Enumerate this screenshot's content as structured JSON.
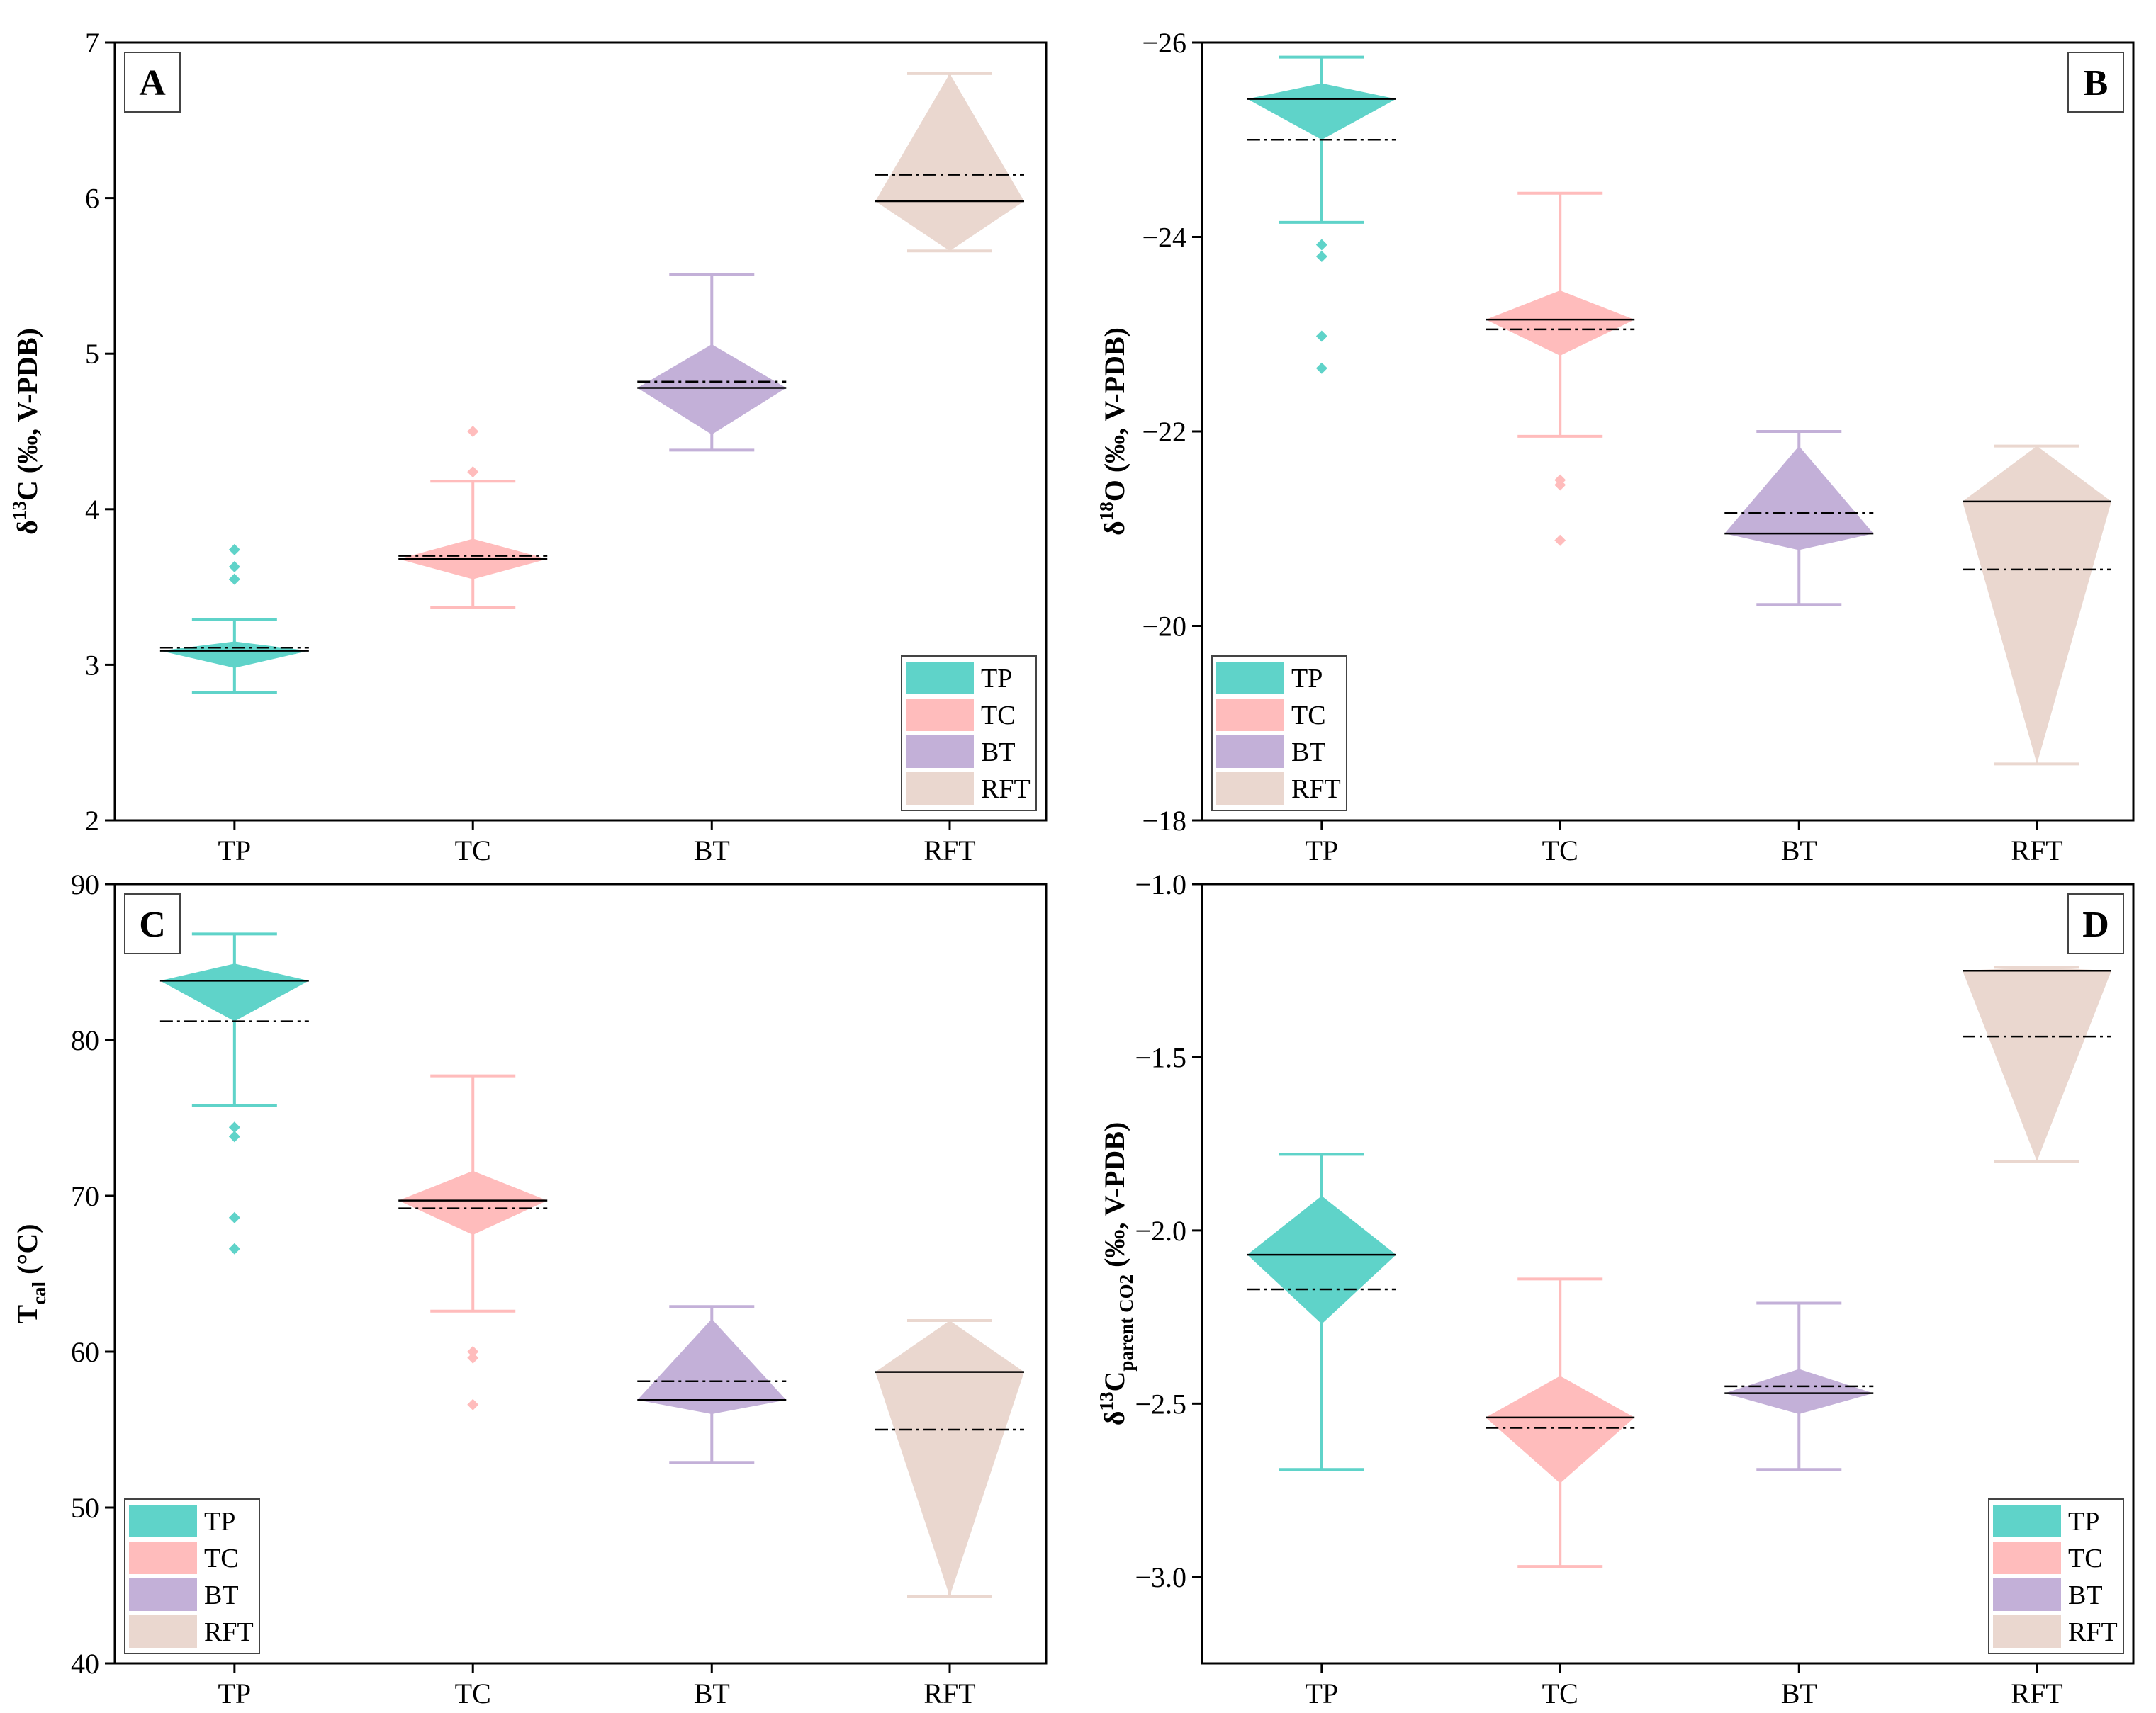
{
  "colors": {
    "TP": "#5fd3c9",
    "TC": "#ffbcbc",
    "BT": "#c3b0d8",
    "RFT": "#ead7cf"
  },
  "chart_data": [
    {
      "type": "box",
      "panel_label": "A",
      "ylabel": {
        "main": "δ",
        "sup": "13",
        "after": "C (‰, V-PDB)"
      },
      "ylim": [
        2,
        7
      ],
      "yticks": [
        2,
        3,
        4,
        5,
        6,
        7
      ],
      "categories": [
        "TP",
        "TC",
        "BT",
        "RFT"
      ],
      "legend": {
        "position": "bottom-right",
        "entries": [
          "TP",
          "TC",
          "BT",
          "RFT"
        ]
      },
      "series": [
        {
          "name": "TP",
          "whisker_low": 2.82,
          "whisker_high": 3.29,
          "q1": 2.98,
          "q3": 3.15,
          "median": 3.09,
          "mean": 3.11,
          "outliers": [
            3.55,
            3.63,
            3.74
          ]
        },
        {
          "name": "TC",
          "whisker_low": 3.37,
          "whisker_high": 4.18,
          "q1": 3.55,
          "q3": 3.81,
          "median": 3.68,
          "mean": 3.7,
          "outliers": [
            4.24,
            4.5
          ]
        },
        {
          "name": "BT",
          "whisker_low": 4.38,
          "whisker_high": 5.51,
          "q1": 4.48,
          "q3": 5.06,
          "median": 4.78,
          "mean": 4.82,
          "outliers": []
        },
        {
          "name": "RFT",
          "whisker_low": 5.66,
          "whisker_high": 6.8,
          "q1": 5.66,
          "q3": 6.8,
          "median": 5.98,
          "mean": 6.15,
          "outliers": []
        }
      ]
    },
    {
      "type": "box",
      "panel_label": "B",
      "ylabel": {
        "main": "δ",
        "sup": "18",
        "after": "O (‰, V-PDB)"
      },
      "ylim": [
        -26,
        -18
      ],
      "yticks": [
        -26,
        -24,
        -22,
        -20,
        -18
      ],
      "ytick_labels": [
        "−26",
        "−24",
        "−22",
        "−20",
        "−18"
      ],
      "reversed": true,
      "categories": [
        "TP",
        "TC",
        "BT",
        "RFT"
      ],
      "legend": {
        "position": "bottom-left",
        "entries": [
          "TP",
          "TC",
          "BT",
          "RFT"
        ]
      },
      "series": [
        {
          "name": "TP",
          "whisker_low": -25.85,
          "whisker_high": -24.15,
          "q1": -25.58,
          "q3": -25.0,
          "median": -25.42,
          "mean": -25.0,
          "outliers": [
            -23.92,
            -23.8,
            -22.98,
            -22.65
          ]
        },
        {
          "name": "TC",
          "whisker_low": -24.45,
          "whisker_high": -21.95,
          "q1": -23.45,
          "q3": -22.78,
          "median": -23.15,
          "mean": -23.05,
          "outliers": [
            -21.5,
            -21.45,
            -20.88
          ]
        },
        {
          "name": "BT",
          "whisker_low": -22.0,
          "whisker_high": -20.22,
          "q1": -21.85,
          "q3": -20.78,
          "median": -20.95,
          "mean": -21.16,
          "outliers": []
        },
        {
          "name": "RFT",
          "whisker_low": -21.85,
          "whisker_high": -18.58,
          "q1": -21.85,
          "q3": -18.58,
          "median": -21.28,
          "mean": -20.58,
          "outliers": []
        }
      ]
    },
    {
      "type": "box",
      "panel_label": "C",
      "ylabel": {
        "main": "T",
        "sub": "cal",
        "after": " (°C)"
      },
      "ylim": [
        40,
        90
      ],
      "yticks": [
        40,
        50,
        60,
        70,
        80,
        90
      ],
      "categories": [
        "TP",
        "TC",
        "BT",
        "RFT"
      ],
      "legend": {
        "position": "bottom-left",
        "entries": [
          "TP",
          "TC",
          "BT",
          "RFT"
        ]
      },
      "series": [
        {
          "name": "TP",
          "whisker_low": 75.8,
          "whisker_high": 86.8,
          "q1": 81.2,
          "q3": 84.9,
          "median": 83.8,
          "mean": 81.2,
          "outliers": [
            74.4,
            73.8,
            68.6,
            66.6
          ]
        },
        {
          "name": "TC",
          "whisker_low": 62.6,
          "whisker_high": 77.7,
          "q1": 67.5,
          "q3": 71.6,
          "median": 69.7,
          "mean": 69.2,
          "outliers": [
            60.0,
            59.6,
            56.6
          ]
        },
        {
          "name": "BT",
          "whisker_low": 52.9,
          "whisker_high": 62.9,
          "q1": 56.0,
          "q3": 62.1,
          "median": 56.9,
          "mean": 58.1,
          "outliers": []
        },
        {
          "name": "RFT",
          "whisker_low": 44.3,
          "whisker_high": 62.0,
          "q1": 44.3,
          "q3": 62.0,
          "median": 58.7,
          "mean": 55.0,
          "outliers": []
        }
      ]
    },
    {
      "type": "box",
      "panel_label": "D",
      "ylabel": {
        "main": "δ",
        "sup": "13",
        "mid": "C",
        "sub": "parent CO2",
        "after": " (‰, V-PDB)"
      },
      "ylim": [
        -3.25,
        -1.0
      ],
      "yticks": [
        -3.0,
        -2.5,
        -2.0,
        -1.5,
        -1.0
      ],
      "ytick_labels": [
        "−3.0",
        "−2.5",
        "−2.0",
        "−1.5",
        "−1.0"
      ],
      "categories": [
        "TP",
        "TC",
        "BT",
        "RFT"
      ],
      "legend": {
        "position": "bottom-right",
        "entries": [
          "TP",
          "TC",
          "BT",
          "RFT"
        ]
      },
      "series": [
        {
          "name": "TP",
          "whisker_low": -2.69,
          "whisker_high": -1.78,
          "q1": -2.27,
          "q3": -1.9,
          "median": -2.07,
          "mean": -2.17,
          "outliers": []
        },
        {
          "name": "TC",
          "whisker_low": -2.97,
          "whisker_high": -2.14,
          "q1": -2.73,
          "q3": -2.42,
          "median": -2.54,
          "mean": -2.57,
          "outliers": []
        },
        {
          "name": "BT",
          "whisker_low": -2.69,
          "whisker_high": -2.21,
          "q1": -2.53,
          "q3": -2.4,
          "median": -2.47,
          "mean": -2.45,
          "outliers": []
        },
        {
          "name": "RFT",
          "whisker_low": -1.8,
          "whisker_high": -1.24,
          "q1": -1.8,
          "q3": -1.24,
          "median": -1.25,
          "mean": -1.44,
          "outliers": []
        }
      ]
    }
  ]
}
